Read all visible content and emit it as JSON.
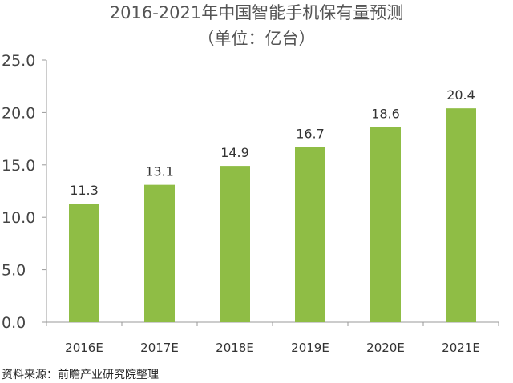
{
  "chart_data": {
    "type": "bar",
    "title": "2016-2021年中国智能手机保有量预测",
    "subtitle": "（单位：亿台）",
    "categories": [
      "2016E",
      "2017E",
      "2018E",
      "2019E",
      "2020E",
      "2021E"
    ],
    "values": [
      11.3,
      13.1,
      14.9,
      16.7,
      18.6,
      20.4
    ],
    "value_labels": [
      "11.3",
      "13.1",
      "14.9",
      "16.7",
      "18.6",
      "20.4"
    ],
    "yticks": [
      "0.0",
      "5.0",
      "10.0",
      "15.0",
      "20.0",
      "25.0"
    ],
    "ylim": [
      0,
      25
    ],
    "xlabel": "",
    "ylabel": "",
    "grid": false,
    "legend": false,
    "bar_color": "#8fbd45"
  },
  "source": "资料来源：前瞻产业研究院整理"
}
